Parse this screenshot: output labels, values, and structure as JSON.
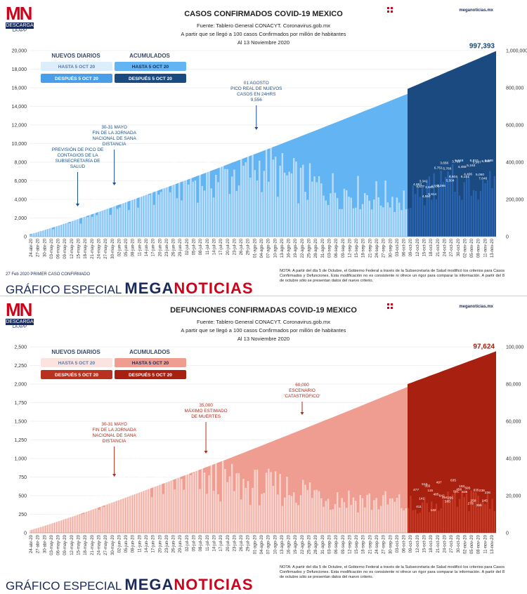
{
  "panels": [
    {
      "logo": {
        "text": "MN",
        "download": "DESCARGA",
        "app": "LA APP"
      },
      "title": "CASOS CONFIRMADOS COVID-19 MEXICO",
      "source": "Fuente: Tablero General CONACYT. Coronavirus.gob.mx",
      "threshold": "A partir que se llegó a 100 casos Confirmados por millón de habitantes",
      "date": "Al 13 Noviembre 2020",
      "site": "meganoticias.mx",
      "footer_note": "27 Feb 2020 PRIMER CASO CONFIRMADO",
      "brand_prefix": "GRÁFICO ESPECIAL ",
      "brand_name": "MEGANOTICIAS",
      "note": "NOTA: A partir del día 5 de Octubre, el Gobierno Federal a través de la Subsecretaría de Salud modificó los criterios para Casos Confirmados y Defunciones. Esta modificación no es consistente ni ofrece un rigor para comparar la información. A partir del 8 de octubre sólo se presentan datos del nuevo criterio.",
      "colors": {
        "daily_before": "#dcedfb",
        "daily_after": "#4a9ee8",
        "cum_before": "#62b4f3",
        "cum_after": "#1a4a7f",
        "dark_after_bars": "#2a64b0",
        "text_accent": "#1a4f8a"
      },
      "chart_data": {
        "type": "bar",
        "title": "CASOS CONFIRMADOS COVID-19 MEXICO",
        "ylim_left": [
          0,
          20000
        ],
        "ylim_right": [
          0,
          1000000
        ],
        "yticks_left": [
          "0",
          "2,000",
          "4,000",
          "6,000",
          "8,000",
          "10,000",
          "12,000",
          "14,000",
          "16,000",
          "18,000",
          "20,000"
        ],
        "yticks_right": [
          "0",
          "200,000",
          "400,000",
          "600,000",
          "800,000",
          "1,000,000"
        ],
        "x_labels": [
          "24-abr-20",
          "27-abr-20",
          "30-abr-20",
          "03-may-20",
          "06-may-20",
          "09-may-20",
          "12-may-20",
          "15-may-20",
          "18-may-20",
          "21-may-20",
          "24-may-20",
          "27-may-20",
          "30-may-20",
          "02-jun-20",
          "05-jun-20",
          "08-jun-20",
          "11-jun-20",
          "14-jun-20",
          "17-jun-20",
          "20-jun-20",
          "23-jun-20",
          "26-jun-20",
          "29-jun-20",
          "02-jul-20",
          "05-jul-20",
          "08-jul-20",
          "11-jul-20",
          "14-jul-20",
          "17-jul-20",
          "20-jul-20",
          "23-jul-20",
          "26-jul-20",
          "29-jul-20",
          "01-ago-20",
          "04-ago-20",
          "07-ago-20",
          "10-ago-20",
          "13-ago-20",
          "16-ago-20",
          "19-ago-20",
          "22-ago-20",
          "25-ago-20",
          "28-ago-20",
          "31-ago-20",
          "03-sep-20",
          "06-sep-20",
          "09-sep-20",
          "12-sep-20",
          "15-sep-20",
          "18-sep-20",
          "21-sep-20",
          "24-sep-20",
          "27-sep-20",
          "30-sep-20",
          "03-oct-20",
          "06-oct-20",
          "09-oct-20",
          "12-oct-20",
          "15-oct-20",
          "18-oct-20",
          "21-oct-20",
          "24-oct-20",
          "27-oct-20",
          "30-oct-20",
          "02-nov-20",
          "05-nov-20",
          "08-nov-20",
          "11-nov-20",
          "13-nov-20"
        ],
        "daily_anchors": [
          [
            0,
            200
          ],
          [
            9,
            1300
          ],
          [
            14,
            1800
          ],
          [
            20,
            2100
          ],
          [
            28,
            3300
          ],
          [
            36,
            3700
          ],
          [
            44,
            4800
          ],
          [
            52,
            5400
          ],
          [
            60,
            6100
          ],
          [
            68,
            6400
          ],
          [
            76,
            6700
          ],
          [
            84,
            6900
          ],
          [
            92,
            7200
          ],
          [
            100,
            8000
          ],
          [
            103,
            8700
          ],
          [
            108,
            7100
          ],
          [
            116,
            6300
          ],
          [
            124,
            5700
          ],
          [
            132,
            5400
          ],
          [
            140,
            5100
          ],
          [
            148,
            4700
          ],
          [
            156,
            4500
          ],
          [
            164,
            4200
          ]
        ],
        "daily_total_days": 165,
        "daily_after_anchors": [
          [
            0,
            4500
          ],
          [
            4,
            5100
          ],
          [
            8,
            5400
          ],
          [
            12,
            6100
          ],
          [
            16,
            6300
          ],
          [
            20,
            6600
          ],
          [
            24,
            6000
          ],
          [
            28,
            6300
          ],
          [
            32,
            6700
          ],
          [
            36,
            6800
          ],
          [
            37,
            5600
          ]
        ],
        "daily_after_days": 38,
        "cum_before": {
          "start": 12000,
          "end": 767000
        },
        "cum_after": {
          "start": 794000,
          "end": 997393
        },
        "cum_final_label": "997,393",
        "after_labels": [
          "4,863",
          "4,577",
          "3,342",
          "4,554",
          "3,840",
          "5,914",
          "4,553",
          "6,751",
          "5,295",
          "3,656",
          "5,766",
          "5,504",
          "6,604",
          "3,769",
          "5,948",
          "4,459",
          "6,151",
          "4,406",
          "5,163",
          "6,810",
          "5,987",
          "5,060",
          "7,646",
          "5,658",
          "6,588"
        ],
        "annotations": [
          {
            "text": [
              "PREVISIÓN DE PICO DE",
              "CONTAGIOS DE LA",
              "SUBSECRETARÍA DE",
              "SALUD"
            ],
            "day": 21
          },
          {
            "text": [
              "30-31 MAYO",
              "FIN DE LA JORNADA",
              "NACIONAL DE SANA",
              "DISTANCIA"
            ],
            "day": 37
          },
          {
            "text": [
              "01 AGOSTO",
              "PICO REAL DE NUEVOS",
              "CASOS EN 24HRS",
              "9,556"
            ],
            "day": 99
          }
        ]
      },
      "legend": {
        "daily": "NUEVOS DIARIOS",
        "cumulative": "ACUMULADOS",
        "before": "HASTA 5 OCT 20",
        "after": "DESPUÉS 5 OCT 20"
      }
    },
    {
      "logo": {
        "text": "MN",
        "download": "DESCARGA",
        "app": "LA APP"
      },
      "title": "DEFUNCIONES CONFIRMADAS COVID-19 MEXICO",
      "source": "Fuente: Tablero General CONACYT. Coronavirus.gob.mx",
      "threshold": "A partir que se llegó a 100 casos Confirmados por millón de habitantes",
      "date": "Al 13 Noviembre 2020",
      "site": "meganoticias.mx",
      "footer_note": "",
      "brand_prefix": "GRÁFICO ESPECIAL ",
      "brand_name": "MEGANOTICIAS",
      "note": "NOTA: A partir del día 5 de Octubre, el Gobierno Federal a través de la Subsecretaría de Salud modificó los criterios para Casos Confirmados y Defunciones. Esta modificación no es consistente ni ofrece un rigor para comparar la información. A partir del 8 de octubre sólo se presentan datos del nuevo criterio.",
      "colors": {
        "daily_before": "#fbe3e0",
        "daily_after": "#b8321f",
        "cum_before": "#ee9d90",
        "cum_after": "#a8200f",
        "dark_after_bars": "#c43a25",
        "text_accent": "#b02a1a"
      },
      "chart_data": {
        "type": "bar",
        "title": "DEFUNCIONES CONFIRMADAS COVID-19 MEXICO",
        "ylim_left": [
          0,
          2500
        ],
        "ylim_right": [
          0,
          100000
        ],
        "yticks_left": [
          "0",
          "250",
          "500",
          "750",
          "1,000",
          "1,250",
          "1,500",
          "1,750",
          "2,000",
          "2,250",
          "2,500"
        ],
        "yticks_right": [
          "0",
          "20,000",
          "40,000",
          "60,000",
          "80,000",
          "100,000"
        ],
        "x_labels": [
          "24-abr-20",
          "27-abr-20",
          "30-abr-20",
          "03-may-20",
          "06-may-20",
          "09-may-20",
          "12-may-20",
          "15-may-20",
          "18-may-20",
          "21-may-20",
          "24-may-20",
          "27-may-20",
          "30-may-20",
          "02-jun-20",
          "05-jun-20",
          "08-jun-20",
          "11-jun-20",
          "14-jun-20",
          "17-jun-20",
          "20-jun-20",
          "23-jun-20",
          "26-jun-20",
          "29-jun-20",
          "02-jul-20",
          "05-jul-20",
          "08-jul-20",
          "11-jul-20",
          "14-jul-20",
          "17-jul-20",
          "20-jul-20",
          "23-jul-20",
          "26-jul-20",
          "29-jul-20",
          "01-ago-20",
          "04-ago-20",
          "07-ago-20",
          "10-ago-20",
          "13-ago-20",
          "16-ago-20",
          "19-ago-20",
          "22-ago-20",
          "25-ago-20",
          "28-ago-20",
          "31-ago-20",
          "03-sep-20",
          "06-sep-20",
          "09-sep-20",
          "12-sep-20",
          "15-sep-20",
          "18-sep-20",
          "21-sep-20",
          "24-sep-20",
          "27-sep-20",
          "30-sep-20",
          "03-oct-20",
          "06-oct-20",
          "09-oct-20",
          "12-oct-20",
          "15-oct-20",
          "18-oct-20",
          "21-oct-20",
          "24-oct-20",
          "27-oct-20",
          "30-oct-20",
          "02-nov-20",
          "05-nov-20",
          "08-nov-20",
          "11-nov-20",
          "13-nov-20"
        ],
        "daily_anchors": [
          [
            0,
            80
          ],
          [
            9,
            250
          ],
          [
            16,
            330
          ],
          [
            24,
            420
          ],
          [
            32,
            600
          ],
          [
            38,
            900
          ],
          [
            48,
            760
          ],
          [
            56,
            720
          ],
          [
            64,
            760
          ],
          [
            72,
            740
          ],
          [
            80,
            760
          ],
          [
            88,
            700
          ],
          [
            96,
            660
          ],
          [
            104,
            640
          ],
          [
            112,
            620
          ],
          [
            120,
            600
          ],
          [
            128,
            540
          ],
          [
            136,
            490
          ],
          [
            144,
            470
          ],
          [
            152,
            440
          ],
          [
            160,
            420
          ],
          [
            164,
            380
          ]
        ],
        "daily_total_days": 165,
        "daily_after_anchors": [
          [
            0,
            420
          ],
          [
            6,
            430
          ],
          [
            12,
            440
          ],
          [
            18,
            470
          ],
          [
            24,
            480
          ],
          [
            30,
            500
          ],
          [
            36,
            490
          ],
          [
            37,
            470
          ]
        ],
        "daily_after_days": 38,
        "cum_before": {
          "start": 1400,
          "end": 78500
        },
        "cum_after": {
          "start": 80000,
          "end": 97624
        },
        "cum_final_label": "97,624",
        "after_labels": [
          "477",
          "411",
          "141",
          "513",
          "355",
          "115",
          "142",
          "485",
          "497",
          "642",
          "464",
          "585",
          "256",
          "635",
          "591",
          "456",
          "193",
          "635",
          "595",
          "278",
          "258",
          "635",
          "256",
          "238",
          "245",
          "236"
        ],
        "annotations": [
          {
            "text": [
              "30-31 MAYO",
              "FIN DE LA JORNADA",
              "NACIONAL DE SANA",
              "DISTANCIA"
            ],
            "day": 37
          },
          {
            "text": [
              "35,000",
              "MÁXIMO ESTIMADO",
              "DE MUERTES"
            ],
            "day": 77
          },
          {
            "text": [
              "60,000",
              "ESCENARIO",
              "'CATASTRÓFICO'"
            ],
            "day": 119
          }
        ]
      },
      "legend": {
        "daily": "NUEVOS DIARIOS",
        "cumulative": "ACUMULADOS",
        "before": "HASTA 5 OCT 20",
        "after": "DESPUÉS 5 OCT 20"
      }
    }
  ]
}
